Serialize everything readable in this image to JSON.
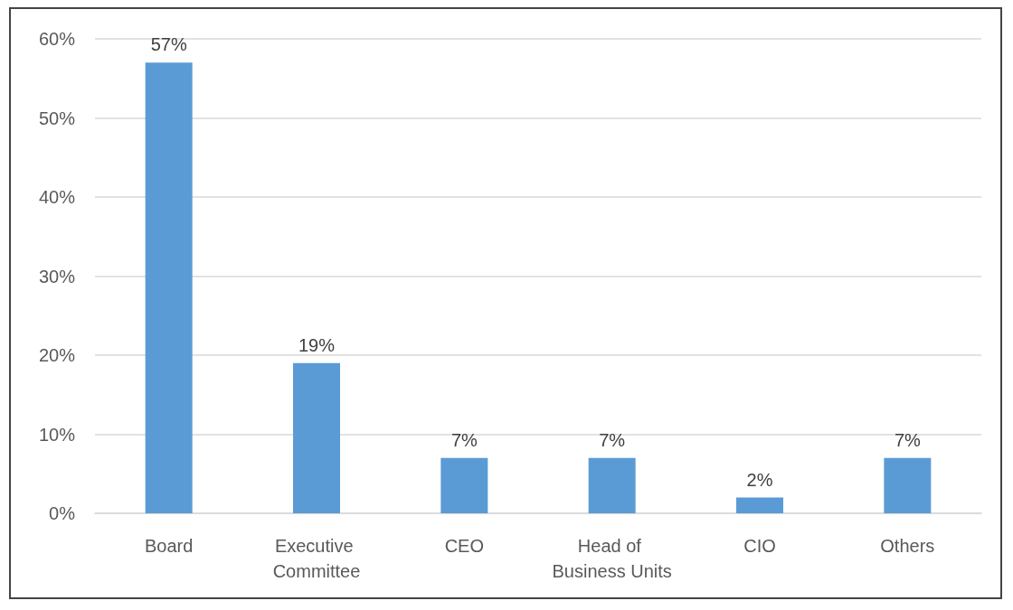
{
  "chart_data": {
    "type": "bar",
    "categories": [
      "Board",
      "Executive Committee",
      "CEO",
      "Head of Business Units",
      "CIO",
      "Others"
    ],
    "values": [
      57,
      19,
      7,
      7,
      2,
      7
    ],
    "value_labels": [
      "57%",
      "19%",
      "7%",
      "7%",
      "2%",
      "7%"
    ],
    "color": "#5b9bd5",
    "ylim": [
      0,
      60
    ],
    "yticks": [
      {
        "value": 0,
        "label": "0%"
      },
      {
        "value": 10,
        "label": "10%"
      },
      {
        "value": 20,
        "label": "20%"
      },
      {
        "value": 30,
        "label": "30%"
      },
      {
        "value": 40,
        "label": "40%"
      },
      {
        "value": 50,
        "label": "50%"
      },
      {
        "value": 60,
        "label": "60%"
      }
    ],
    "grid": true
  }
}
